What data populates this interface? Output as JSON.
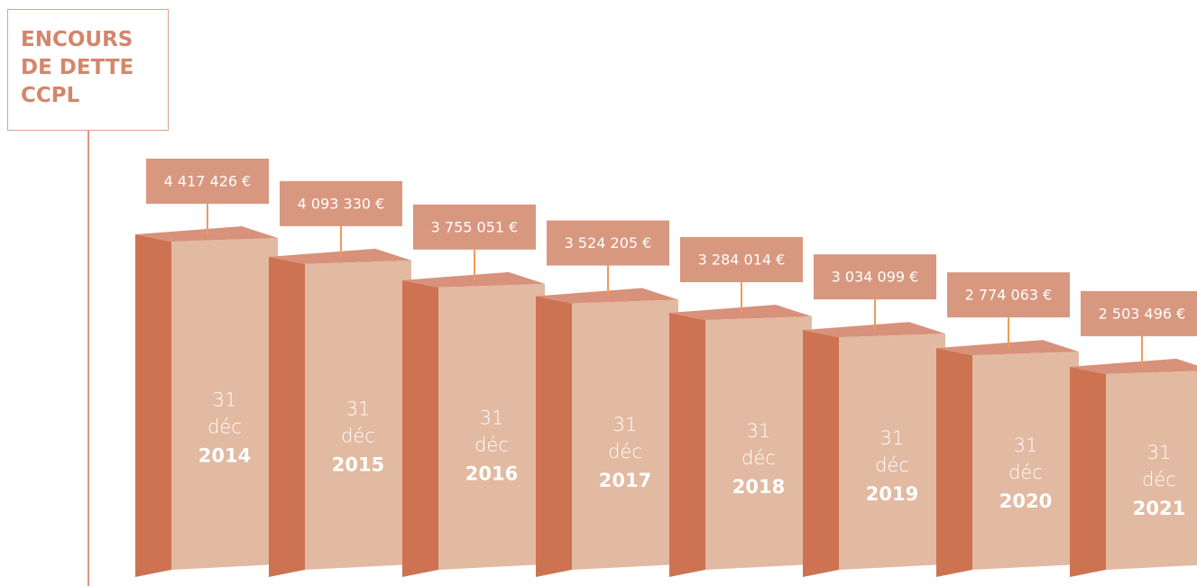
{
  "chart_data": {
    "type": "bar3d",
    "title": "ENCOURS DE DETTE CCPL",
    "category_day": "31",
    "category_month": "déc",
    "categories": [
      "2014",
      "2015",
      "2016",
      "2017",
      "2018",
      "2019",
      "2020",
      "2021"
    ],
    "values": [
      4417426,
      4093330,
      3755051,
      3524205,
      3284014,
      3034099,
      2774063,
      2503496
    ],
    "value_labels": [
      "4 417 426 €",
      "4 093 330 €",
      "3 755 051 €",
      "3 524 205 €",
      "3 284 014 €",
      "3 034 099 €",
      "2 774 063 €",
      "2 503 496 €"
    ],
    "color": "#e2b9a1"
  }
}
